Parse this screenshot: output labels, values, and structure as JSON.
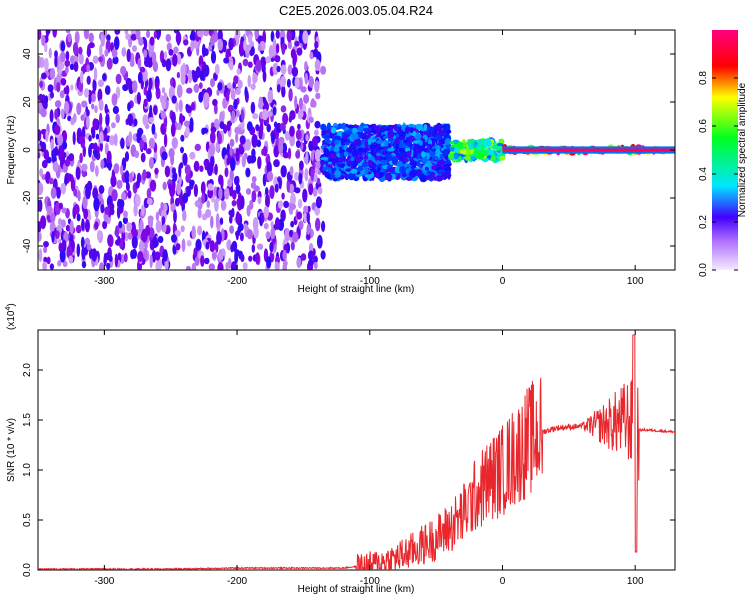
{
  "title": "C2E5.2026.003.05.04.R24",
  "chart_data": [
    {
      "type": "heatmap",
      "xlabel": "Height of straight line (km)",
      "ylabel": "Frequency (Hz)",
      "xlim": [
        -350,
        130
      ],
      "ylim": [
        -50,
        50
      ],
      "x_ticks": [
        -300,
        -200,
        -100,
        0,
        100
      ],
      "y_ticks": [
        -40,
        -20,
        0,
        20,
        40
      ],
      "colorbar": {
        "label": "Normalized spectral amplitude",
        "range": [
          0,
          1
        ],
        "ticks": [
          0.0,
          0.2,
          0.4,
          0.6,
          0.8
        ],
        "tick_labels": [
          "0.0",
          "0.2",
          "0.4",
          "0.6",
          "0.8"
        ],
        "colormap": [
          "#f4eaff",
          "#7b00e6",
          "#0010ff",
          "#00e5ff",
          "#00ff20",
          "#ffff00",
          "#ff0000",
          "#ff0080"
        ]
      },
      "regions": [
        {
          "x_range": [
            -350,
            -135
          ],
          "y_range": [
            -50,
            50
          ],
          "level": 0.12
        },
        {
          "x_range": [
            -135,
            -40
          ],
          "y_range": [
            -12,
            10
          ],
          "level": 0.35
        },
        {
          "x_range": [
            -40,
            0
          ],
          "y_range": [
            -4,
            4
          ],
          "level": 0.6
        },
        {
          "x_range": [
            0,
            130
          ],
          "y_range": [
            -1,
            1
          ],
          "level": 0.95
        }
      ]
    },
    {
      "type": "line",
      "xlabel": "Height of straight line (km)",
      "ylabel": "SNR (10 * v/v)",
      "y_multiplier_label": "(x10",
      "y_multiplier_exp": "4",
      "y_multiplier_close": ")",
      "xlim": [
        -350,
        130
      ],
      "ylim": [
        0,
        2.4
      ],
      "x_ticks": [
        -300,
        -200,
        -100,
        0,
        100
      ],
      "y_ticks": [
        0.0,
        0.5,
        1.0,
        1.5,
        2.0
      ],
      "y_tick_labels": [
        "0.0",
        "0.5",
        "1.0",
        "1.5",
        "2.0"
      ],
      "series": [
        {
          "color": "#e8262b",
          "x": [
            -350,
            -300,
            -250,
            -200,
            -150,
            -120,
            -100,
            -90,
            -80,
            -70,
            -60,
            -50,
            -40,
            -30,
            -20,
            -10,
            0,
            10,
            20,
            30,
            40,
            50,
            60,
            70,
            80,
            90,
            95,
            100,
            105,
            110,
            120,
            130
          ],
          "y": [
            0.01,
            0.01,
            0.01,
            0.02,
            0.02,
            0.02,
            0.05,
            0.08,
            0.12,
            0.18,
            0.25,
            0.32,
            0.42,
            0.55,
            0.75,
            0.9,
            1.0,
            1.15,
            1.3,
            1.38,
            1.42,
            1.43,
            1.44,
            1.45,
            1.46,
            1.48,
            1.5,
            1.4,
            1.4,
            1.4,
            1.39,
            1.38
          ]
        }
      ]
    }
  ]
}
